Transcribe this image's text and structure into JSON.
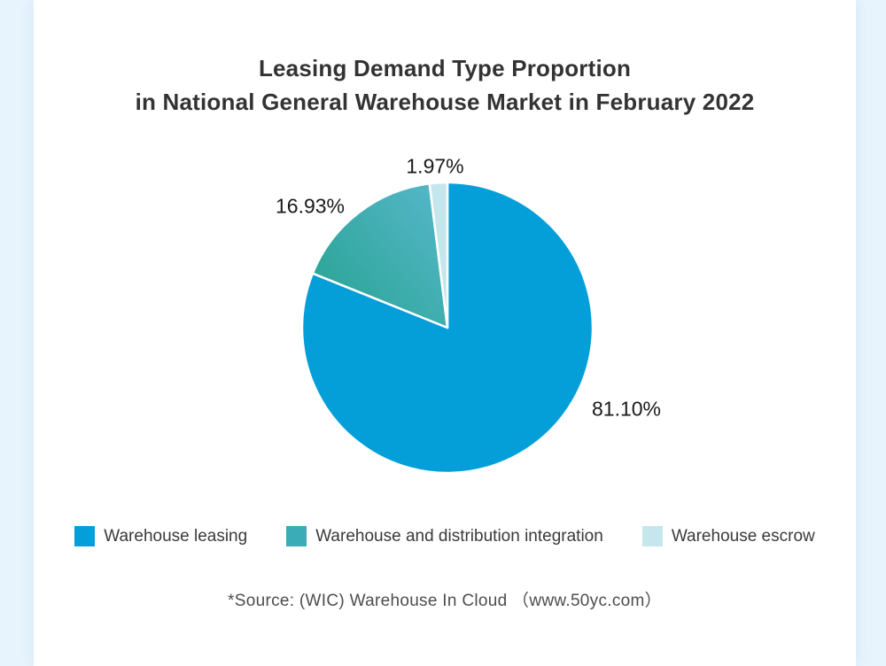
{
  "page": {
    "background_color": "#e8f4fd",
    "card_color": "#ffffff"
  },
  "title": {
    "line1": "Leasing Demand Type Proportion",
    "line2": "in National General Warehouse Market in February 2022"
  },
  "chart_data": {
    "type": "pie",
    "title": "Leasing Demand Type Proportion in National General Warehouse Market in February 2022",
    "start_angle_deg": 0,
    "direction": "clockwise",
    "legend_position": "bottom",
    "slices": [
      {
        "label": "Warehouse leasing",
        "value": 81.1,
        "display": "81.10%",
        "color": "#049fd9"
      },
      {
        "label": "Warehouse and distribution integration",
        "value": 16.93,
        "display": "16.93%",
        "color": "#3aacb8",
        "color_start": "#2ba496",
        "color_end": "#55b7c9"
      },
      {
        "label": "Warehouse escrow",
        "value": 1.97,
        "display": "1.97%",
        "color": "#c5e6ec"
      }
    ]
  },
  "source": {
    "text": "*Source: (WIC) Warehouse In Cloud （www.50yc.com）"
  }
}
